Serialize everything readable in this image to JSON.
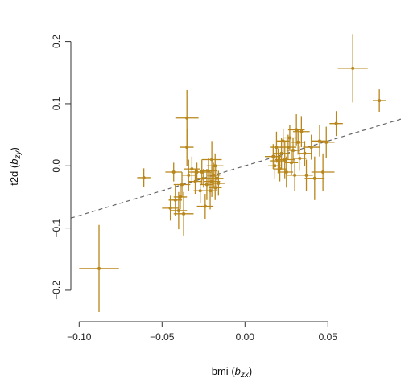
{
  "chart_data": {
    "type": "scatter",
    "xlabel": "bmi",
    "xlabel_sub": "zx",
    "ylabel": "t2d",
    "ylabel_sub": "zy",
    "xlim": [
      -0.105,
      0.095
    ],
    "ylim": [
      -0.235,
      0.215
    ],
    "x_ticks": [
      -0.1,
      -0.05,
      0.0,
      0.05
    ],
    "x_tick_labels": [
      "−0.10",
      "−0.05",
      "0.00",
      "0.05"
    ],
    "y_ticks": [
      -0.2,
      -0.1,
      0.0,
      0.1,
      0.2
    ],
    "y_tick_labels": [
      "−0.2",
      "−0.1",
      "0.0",
      "0.1",
      "0.2"
    ],
    "grid": false,
    "point_color": "#B8861A",
    "fit_line": {
      "intercept": 0.0,
      "slope": 0.8,
      "style": "dashed",
      "color": "#666666"
    },
    "points": [
      {
        "x": -0.088,
        "y": -0.165,
        "xerr": 0.012,
        "yerr": 0.07
      },
      {
        "x": -0.061,
        "y": -0.019,
        "xerr": 0.004,
        "yerr": 0.015
      },
      {
        "x": -0.045,
        "y": -0.068,
        "xerr": 0.005,
        "yerr": 0.02
      },
      {
        "x": -0.043,
        "y": -0.01,
        "xerr": 0.005,
        "yerr": 0.015
      },
      {
        "x": -0.042,
        "y": -0.055,
        "xerr": 0.004,
        "yerr": 0.025
      },
      {
        "x": -0.04,
        "y": -0.072,
        "xerr": 0.005,
        "yerr": 0.03
      },
      {
        "x": -0.039,
        "y": -0.05,
        "xerr": 0.004,
        "yerr": 0.02
      },
      {
        "x": -0.038,
        "y": -0.03,
        "xerr": 0.005,
        "yerr": 0.02
      },
      {
        "x": -0.037,
        "y": -0.077,
        "xerr": 0.006,
        "yerr": 0.035
      },
      {
        "x": -0.035,
        "y": 0.077,
        "xerr": 0.007,
        "yerr": 0.045
      },
      {
        "x": -0.035,
        "y": 0.03,
        "xerr": 0.004,
        "yerr": 0.03
      },
      {
        "x": -0.034,
        "y": -0.015,
        "xerr": 0.004,
        "yerr": 0.025
      },
      {
        "x": -0.032,
        "y": -0.005,
        "xerr": 0.005,
        "yerr": 0.02
      },
      {
        "x": -0.03,
        "y": -0.025,
        "xerr": 0.004,
        "yerr": 0.02
      },
      {
        "x": -0.029,
        "y": -0.01,
        "xerr": 0.005,
        "yerr": 0.015
      },
      {
        "x": -0.027,
        "y": -0.04,
        "xerr": 0.004,
        "yerr": 0.02
      },
      {
        "x": -0.026,
        "y": -0.01,
        "xerr": 0.006,
        "yerr": 0.02
      },
      {
        "x": -0.025,
        "y": -0.02,
        "xerr": 0.004,
        "yerr": 0.015
      },
      {
        "x": -0.024,
        "y": -0.065,
        "xerr": 0.005,
        "yerr": 0.02
      },
      {
        "x": -0.023,
        "y": -0.03,
        "xerr": 0.004,
        "yerr": 0.025
      },
      {
        "x": -0.022,
        "y": -0.008,
        "xerr": 0.005,
        "yerr": 0.02
      },
      {
        "x": -0.021,
        "y": -0.04,
        "xerr": 0.004,
        "yerr": 0.03
      },
      {
        "x": -0.02,
        "y": 0.01,
        "xerr": 0.006,
        "yerr": 0.03
      },
      {
        "x": -0.02,
        "y": -0.025,
        "xerr": 0.005,
        "yerr": 0.025
      },
      {
        "x": -0.019,
        "y": -0.015,
        "xerr": 0.004,
        "yerr": 0.02
      },
      {
        "x": -0.018,
        "y": -0.035,
        "xerr": 0.004,
        "yerr": 0.02
      },
      {
        "x": -0.018,
        "y": 0.0,
        "xerr": 0.005,
        "yerr": 0.02
      },
      {
        "x": -0.017,
        "y": -0.02,
        "xerr": 0.004,
        "yerr": 0.02
      },
      {
        "x": -0.016,
        "y": -0.028,
        "xerr": 0.004,
        "yerr": 0.02
      },
      {
        "x": 0.017,
        "y": 0.015,
        "xerr": 0.005,
        "yerr": 0.02
      },
      {
        "x": 0.018,
        "y": 0.0,
        "xerr": 0.004,
        "yerr": 0.02
      },
      {
        "x": 0.019,
        "y": 0.03,
        "xerr": 0.004,
        "yerr": 0.025
      },
      {
        "x": 0.02,
        "y": 0.008,
        "xerr": 0.005,
        "yerr": 0.02
      },
      {
        "x": 0.021,
        "y": -0.005,
        "xerr": 0.004,
        "yerr": 0.02
      },
      {
        "x": 0.022,
        "y": 0.02,
        "xerr": 0.005,
        "yerr": 0.025
      },
      {
        "x": 0.023,
        "y": 0.04,
        "xerr": 0.004,
        "yerr": 0.02
      },
      {
        "x": 0.024,
        "y": 0.01,
        "xerr": 0.006,
        "yerr": 0.03
      },
      {
        "x": 0.025,
        "y": -0.01,
        "xerr": 0.004,
        "yerr": 0.025
      },
      {
        "x": 0.026,
        "y": 0.03,
        "xerr": 0.005,
        "yerr": 0.02
      },
      {
        "x": 0.027,
        "y": 0.045,
        "xerr": 0.004,
        "yerr": 0.02
      },
      {
        "x": 0.028,
        "y": 0.005,
        "xerr": 0.004,
        "yerr": 0.02
      },
      {
        "x": 0.029,
        "y": 0.025,
        "xerr": 0.004,
        "yerr": 0.02
      },
      {
        "x": 0.03,
        "y": -0.015,
        "xerr": 0.005,
        "yerr": 0.025
      },
      {
        "x": 0.031,
        "y": 0.058,
        "xerr": 0.005,
        "yerr": 0.025
      },
      {
        "x": 0.032,
        "y": 0.038,
        "xerr": 0.004,
        "yerr": 0.02
      },
      {
        "x": 0.033,
        "y": 0.012,
        "xerr": 0.004,
        "yerr": 0.02
      },
      {
        "x": 0.034,
        "y": 0.055,
        "xerr": 0.005,
        "yerr": 0.025
      },
      {
        "x": 0.036,
        "y": 0.02,
        "xerr": 0.004,
        "yerr": 0.02
      },
      {
        "x": 0.037,
        "y": -0.015,
        "xerr": 0.004,
        "yerr": 0.025
      },
      {
        "x": 0.04,
        "y": 0.03,
        "xerr": 0.005,
        "yerr": 0.02
      },
      {
        "x": 0.042,
        "y": -0.02,
        "xerr": 0.006,
        "yerr": 0.035
      },
      {
        "x": 0.045,
        "y": 0.04,
        "xerr": 0.005,
        "yerr": 0.025
      },
      {
        "x": 0.047,
        "y": -0.01,
        "xerr": 0.007,
        "yerr": 0.03
      },
      {
        "x": 0.049,
        "y": 0.038,
        "xerr": 0.005,
        "yerr": 0.025
      },
      {
        "x": 0.055,
        "y": 0.068,
        "xerr": 0.004,
        "yerr": 0.02
      },
      {
        "x": 0.065,
        "y": 0.157,
        "xerr": 0.009,
        "yerr": 0.055
      },
      {
        "x": 0.081,
        "y": 0.105,
        "xerr": 0.004,
        "yerr": 0.018
      }
    ]
  }
}
